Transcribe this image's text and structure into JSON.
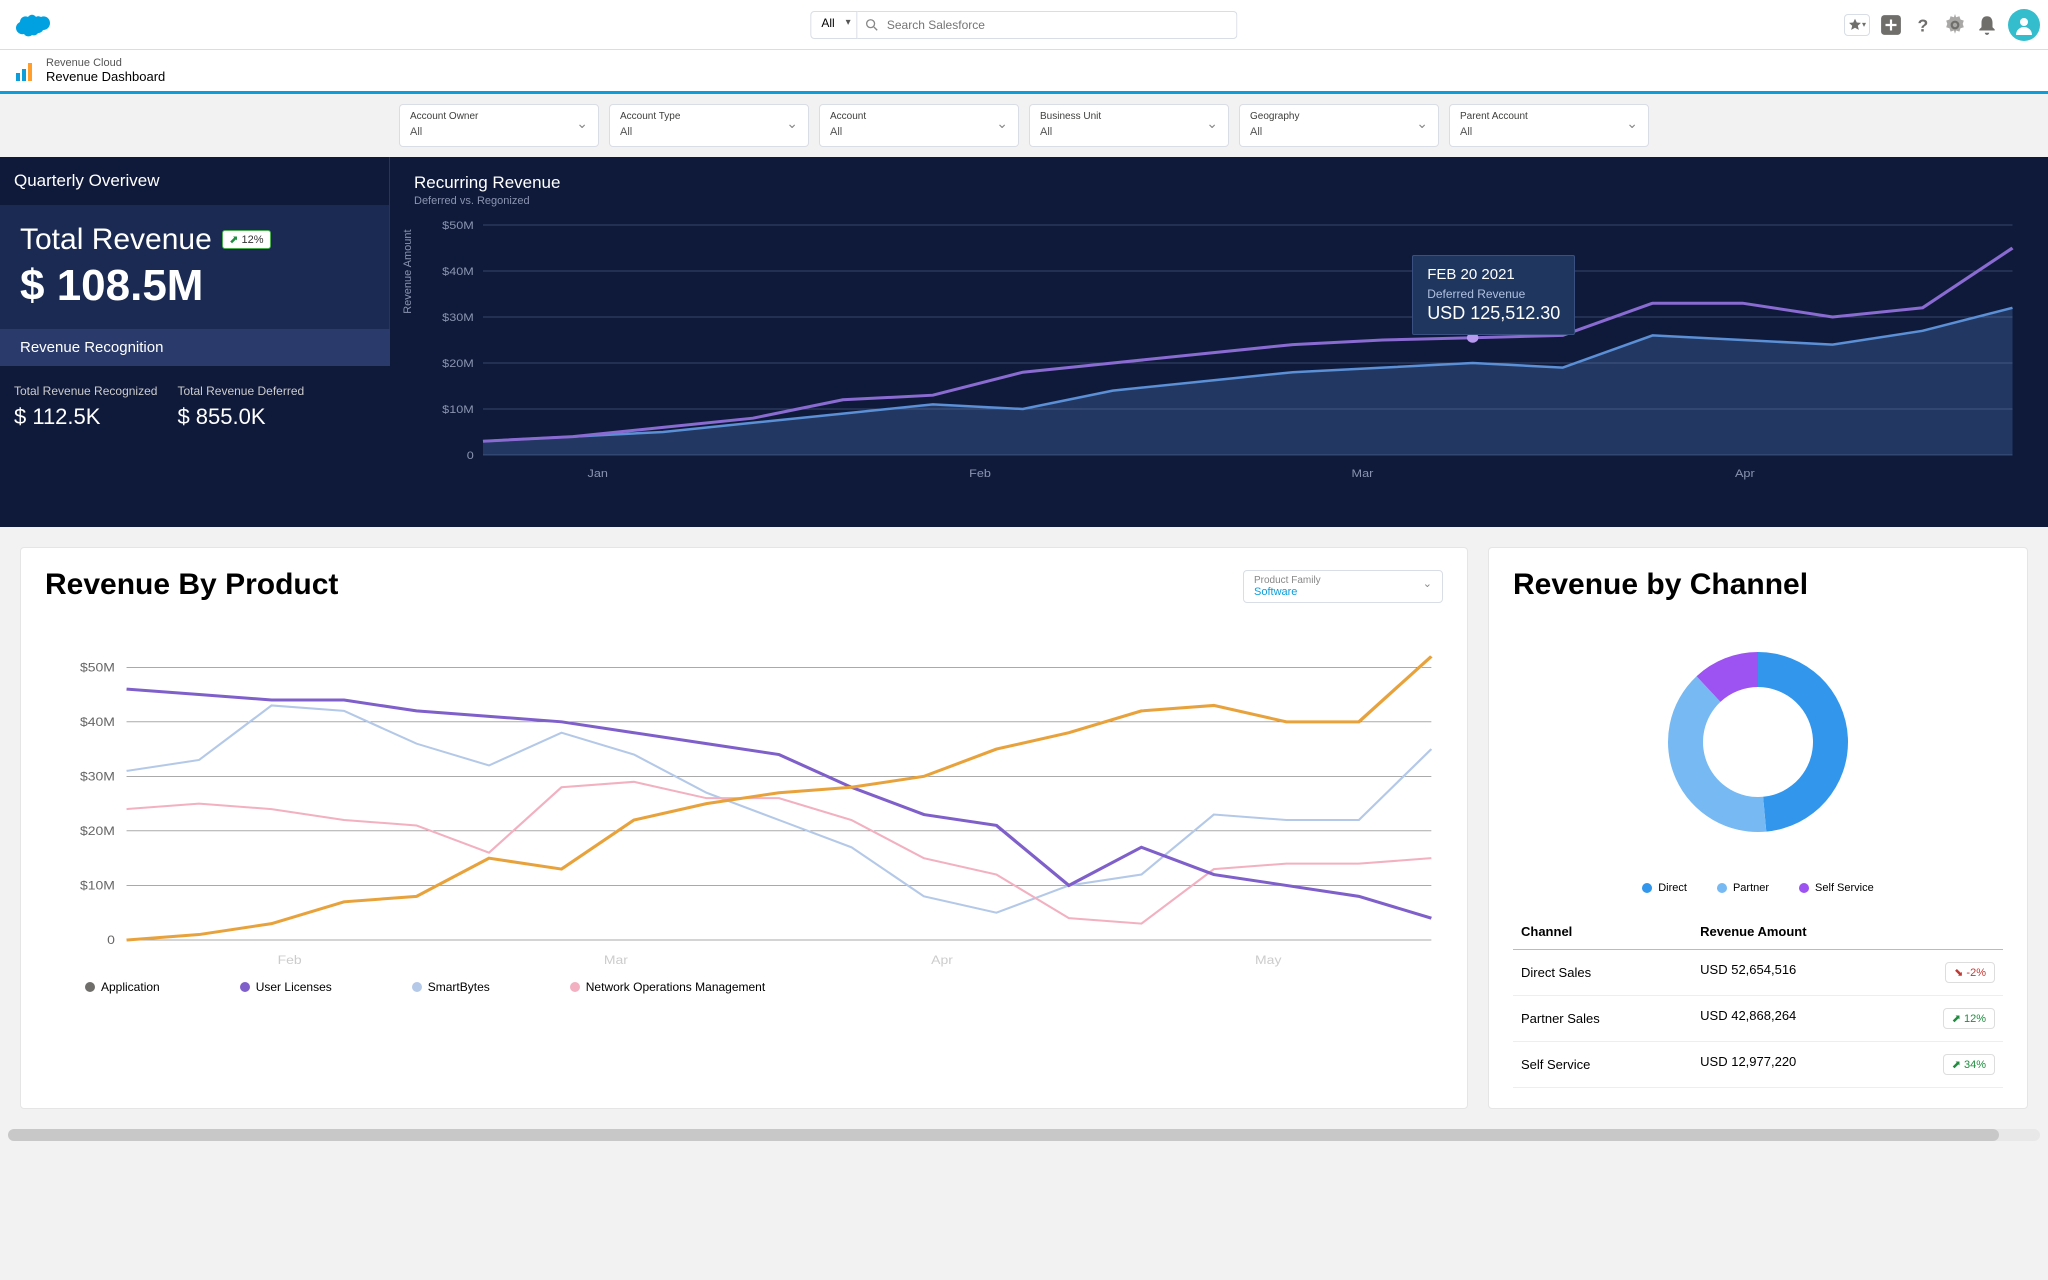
{
  "header": {
    "search_scope": "All",
    "search_placeholder": "Search Salesforce"
  },
  "subheader": {
    "eyebrow": "Revenue Cloud",
    "title": "Revenue Dashboard"
  },
  "filters": [
    {
      "label": "Account  Owner",
      "value": "All"
    },
    {
      "label": "Account Type",
      "value": "All"
    },
    {
      "label": "Account",
      "value": "All"
    },
    {
      "label": "Business Unit",
      "value": "All"
    },
    {
      "label": "Geography",
      "value": "All"
    },
    {
      "label": "Parent Account",
      "value": "All"
    }
  ],
  "overview": {
    "section_title": "Quarterly Overivew",
    "total_revenue_label": "Total Revenue",
    "total_revenue_trend": "12%",
    "total_revenue_value": "$ 108.5M",
    "rev_rec_label": "Revenue Recognition",
    "recognized_label": "Total Revenue Recognized",
    "recognized_value": "$ 112.5K",
    "deferred_label": "Total Revenue Deferred",
    "deferred_value": "$ 855.0K"
  },
  "recurring": {
    "title": "Recurring Revenue",
    "subtitle": "Deferred vs. Regonized",
    "y_axis_label": "Revenue Amount",
    "y_ticks": [
      "0",
      "$10M",
      "$20M",
      "$30M",
      "$40M",
      "$50M"
    ],
    "x_ticks": [
      "Jan",
      "Feb",
      "Mar",
      "Apr"
    ],
    "tooltip": {
      "date": "FEB 20 2021",
      "label": "Deferred Revenue",
      "value": "USD 125,512.30"
    },
    "colors": {
      "grid": "#3a4668",
      "line_purple": "#8a6bd1",
      "line_blue": "#5b8fd6",
      "fill_blue": "rgba(91,143,214,0.25)",
      "bg": "#0f1a3a"
    },
    "series_purple": [
      3,
      4,
      6,
      8,
      12,
      13,
      18,
      20,
      22,
      24,
      25,
      25.5,
      26,
      33,
      33,
      30,
      32,
      45
    ],
    "series_blue": [
      3,
      4,
      5,
      7,
      9,
      11,
      10,
      14,
      16,
      18,
      19,
      20,
      19,
      26,
      25,
      24,
      27,
      32
    ],
    "y_max": 50
  },
  "rev_product": {
    "title": "Revenue By Product",
    "select_label": "Product Family",
    "select_value": "Software",
    "y_ticks": [
      "0",
      "$10M",
      "$20M",
      "$30M",
      "$40M",
      "$50M"
    ],
    "x_ticks": [
      "Feb",
      "Mar",
      "Apr",
      "May"
    ],
    "y_max": 55,
    "colors": {
      "application": "#706e6b",
      "user_licenses": "#7f5fc9",
      "smartbytes": "#b4c8e8",
      "network_ops": "#f2b0c0",
      "axis": "#666"
    },
    "legend": [
      {
        "label": "Application",
        "color": "#706e6b"
      },
      {
        "label": "User Licenses",
        "color": "#7f5fc9"
      },
      {
        "label": "SmartBytes",
        "color": "#b4c8e8"
      },
      {
        "label": "Network Operations Management",
        "color": "#f2b0c0"
      }
    ],
    "series": {
      "application": [
        0,
        1,
        3,
        7,
        8,
        15,
        13,
        22,
        25,
        27,
        28,
        30,
        35,
        38,
        42,
        43,
        40,
        40,
        52
      ],
      "user_licenses": [
        46,
        45,
        44,
        44,
        42,
        41,
        40,
        38,
        36,
        34,
        28,
        23,
        21,
        10,
        17,
        12,
        10,
        8,
        4
      ],
      "smartbytes": [
        31,
        33,
        43,
        42,
        36,
        32,
        38,
        34,
        27,
        22,
        17,
        8,
        5,
        10,
        12,
        23,
        22,
        22,
        35
      ],
      "network_ops": [
        24,
        25,
        24,
        22,
        21,
        16,
        28,
        29,
        26,
        26,
        22,
        15,
        12,
        4,
        3,
        13,
        14,
        14,
        15
      ]
    }
  },
  "rev_channel": {
    "title": "Revenue by Channel",
    "legend": [
      {
        "label": "Direct",
        "color": "#3296ed"
      },
      {
        "label": "Partner",
        "color": "#77b9f2"
      },
      {
        "label": "Self Service",
        "color": "#9d53f2"
      }
    ],
    "donut": [
      {
        "value": 52654516,
        "color": "#3296ed"
      },
      {
        "value": 42868264,
        "color": "#77b9f2"
      },
      {
        "value": 12977220,
        "color": "#9d53f2"
      }
    ],
    "table": {
      "headers": [
        "Channel",
        "Revenue Amount"
      ],
      "rows": [
        {
          "channel": "Direct Sales",
          "amount": "USD 52,654,516",
          "delta": "-2%",
          "dir": "down"
        },
        {
          "channel": "Partner Sales",
          "amount": "USD 42,868,264",
          "delta": "12%",
          "dir": "up"
        },
        {
          "channel": "Self Service",
          "amount": "USD 12,977,220",
          "delta": "34%",
          "dir": "up"
        }
      ]
    }
  }
}
